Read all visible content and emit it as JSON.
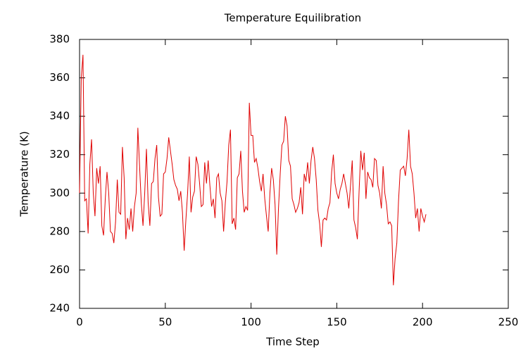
{
  "chart_data": {
    "type": "line",
    "title": "Temperature Equilibration",
    "xlabel": "Time Step",
    "ylabel": "Temperature (K)",
    "x": [
      0,
      1,
      2,
      3,
      4,
      5,
      6,
      7,
      8,
      9,
      10,
      11,
      12,
      13,
      14,
      15,
      16,
      17,
      18,
      19,
      20,
      21,
      22,
      23,
      24,
      25,
      26,
      27,
      28,
      29,
      30,
      31,
      32,
      33,
      34,
      35,
      36,
      37,
      38,
      39,
      40,
      41,
      42,
      43,
      44,
      45,
      46,
      47,
      48,
      49,
      50,
      51,
      52,
      53,
      54,
      55,
      56,
      57,
      58,
      59,
      60,
      61,
      62,
      63,
      64,
      65,
      66,
      67,
      68,
      69,
      70,
      71,
      72,
      73,
      74,
      75,
      76,
      77,
      78,
      79,
      80,
      81,
      82,
      83,
      84,
      85,
      86,
      87,
      88,
      89,
      90,
      91,
      92,
      93,
      94,
      95,
      96,
      97,
      98,
      99,
      100,
      101,
      102,
      103,
      104,
      105,
      106,
      107,
      108,
      109,
      110,
      111,
      112,
      113,
      114,
      115,
      116,
      117,
      118,
      119,
      120,
      121,
      122,
      123,
      124,
      125,
      126,
      127,
      128,
      129,
      130,
      131,
      132,
      133,
      134,
      135,
      136,
      137,
      138,
      139,
      140,
      141,
      142,
      143,
      144,
      145,
      146,
      147,
      148,
      149,
      150,
      151,
      152,
      153,
      154,
      155,
      156,
      157,
      158,
      159,
      160,
      161,
      162,
      163,
      164,
      165,
      166,
      167,
      168,
      169,
      170,
      171,
      172,
      173,
      174,
      175,
      176,
      177,
      178,
      179,
      180,
      181,
      182,
      183,
      184,
      185,
      186,
      187,
      188,
      189,
      190,
      191,
      192,
      193,
      194,
      195,
      196,
      197,
      198,
      199,
      200,
      201,
      202
    ],
    "series": [
      {
        "name": "Temperature",
        "color": "#e00000",
        "values": [
          300,
          360,
          372,
          296,
          297,
          279,
          315,
          328,
          300,
          288,
          313,
          305,
          314,
          283,
          278,
          297,
          311,
          300,
          280,
          279,
          274,
          285,
          307,
          290,
          289,
          324,
          308,
          276,
          287,
          281,
          292,
          280,
          293,
          300,
          334,
          314,
          295,
          283,
          300,
          323,
          295,
          283,
          305,
          306,
          318,
          325,
          298,
          288,
          289,
          310,
          311,
          318,
          329,
          322,
          315,
          307,
          304,
          302,
          296,
          301,
          290,
          270,
          286,
          300,
          319,
          290,
          298,
          301,
          319,
          315,
          305,
          293,
          294,
          316,
          305,
          317,
          304,
          293,
          297,
          287,
          308,
          310,
          300,
          296,
          280,
          295,
          306,
          325,
          333,
          284,
          287,
          281,
          308,
          310,
          322,
          301,
          290,
          293,
          291,
          347,
          330,
          330,
          316,
          318,
          313,
          306,
          301,
          310,
          297,
          288,
          280,
          300,
          313,
          307,
          294,
          268,
          292,
          310,
          325,
          327,
          340,
          335,
          317,
          314,
          297,
          294,
          290,
          292,
          295,
          303,
          289,
          310,
          306,
          316,
          305,
          317,
          324,
          318,
          307,
          291,
          284,
          272,
          286,
          287,
          286,
          292,
          295,
          311,
          320,
          305,
          300,
          297,
          302,
          305,
          310,
          305,
          300,
          292,
          304,
          317,
          286,
          282,
          276,
          301,
          322,
          312,
          321,
          297,
          311,
          308,
          307,
          303,
          318,
          317,
          304,
          300,
          292,
          314,
          300,
          294,
          284,
          285,
          283,
          252,
          266,
          274,
          296,
          312,
          313,
          314,
          309,
          318,
          333,
          314,
          310,
          300,
          287,
          292,
          280,
          292,
          288,
          285,
          289
        ]
      }
    ],
    "xlim": [
      0,
      250
    ],
    "xticks": [
      0,
      50,
      100,
      150,
      200,
      250
    ],
    "ylim": [
      240,
      380
    ],
    "yticks": [
      240,
      260,
      280,
      300,
      320,
      340,
      360,
      380
    ]
  }
}
